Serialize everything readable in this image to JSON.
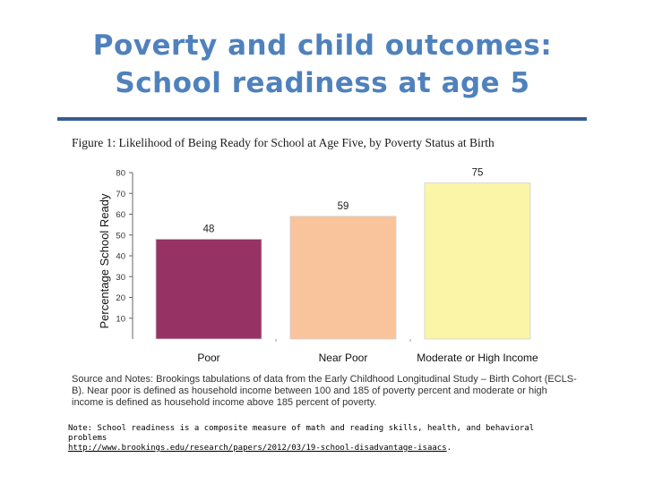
{
  "slide": {
    "title_line1": "Poverty and child outcomes:",
    "title_line2": "School readiness at age 5"
  },
  "figure": {
    "caption": "Figure 1: Likelihood of Being Ready for School at Age Five, by Poverty Status at Birth",
    "source_notes": "Source and Notes: Brookings tabulations of data from the Early Childhood Longitudinal Study – Birth Cohort (ECLS-B). Near poor is defined as household income between 100 and 185 of poverty percent and moderate or high income is defined as household income above 185 percent of poverty."
  },
  "note": {
    "text": "Note: School readiness is a composite measure of math and reading skills, health, and behavioral problems",
    "link": "http://www.brookings.edu/research/papers/2012/03/19-school-disadvantage-isaacs",
    "link_suffix": "."
  },
  "chart_data": {
    "type": "bar",
    "categories": [
      "Poor",
      "Near Poor",
      "Moderate or High Income"
    ],
    "values": [
      48,
      59,
      75
    ],
    "colors": [
      "#963264",
      "#f9c49b",
      "#fbf5a8"
    ],
    "ylabel": "Percentage School Ready",
    "ylim": [
      0,
      80
    ],
    "yticks": [
      10,
      20,
      30,
      40,
      50,
      60,
      70,
      80
    ],
    "data_labels": [
      "48",
      "59",
      "75"
    ],
    "grid": false,
    "legend": "none"
  }
}
